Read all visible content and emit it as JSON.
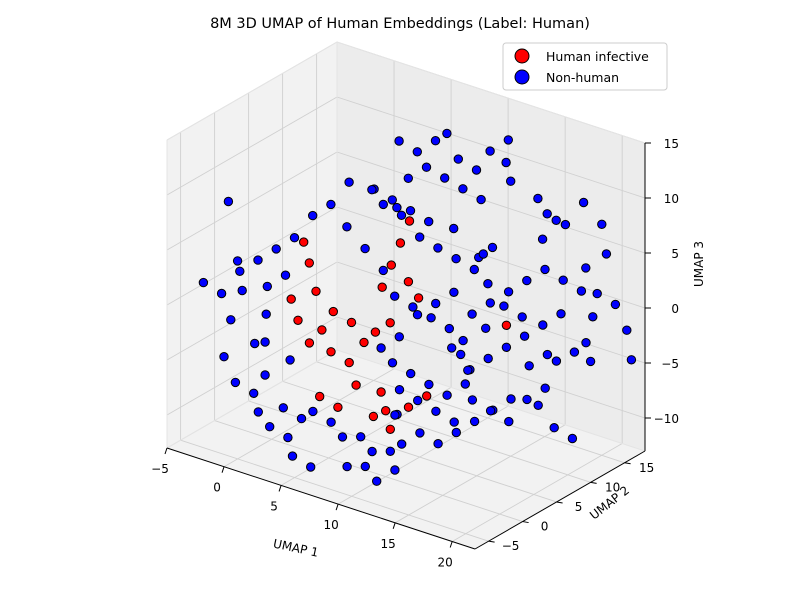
{
  "chart_data": {
    "type": "scatter",
    "title": "8M 3D UMAP of Human Embeddings (Label: Human)",
    "xlabel": "UMAP 1",
    "ylabel": "UMAP 2",
    "zlabel": "UMAP 3",
    "xlim": [
      -5,
      22
    ],
    "ylim": [
      -7,
      18
    ],
    "zlim": [
      -13,
      15
    ],
    "x_ticks": [
      -5,
      0,
      5,
      10,
      15,
      20
    ],
    "y_ticks": [
      -5,
      0,
      5,
      10,
      15
    ],
    "z_ticks": [
      -10,
      -5,
      0,
      5,
      10,
      15
    ],
    "grid": true,
    "legend_position": "top-right",
    "series": [
      {
        "name": "Human infective",
        "color": "#ff0000",
        "points": [
          [
            4,
            -2,
            7
          ],
          [
            4.2,
            -1.5,
            5
          ],
          [
            3.5,
            -3,
            2
          ],
          [
            3.8,
            -2.5,
            0
          ],
          [
            4.5,
            -2,
            -2
          ],
          [
            5,
            -1,
            -1
          ],
          [
            6,
            -1,
            1
          ],
          [
            7,
            0,
            0
          ],
          [
            5.5,
            -0.5,
            -3
          ],
          [
            6.5,
            0.5,
            -4
          ],
          [
            7.5,
            1,
            -2
          ],
          [
            8,
            -1,
            -5
          ],
          [
            8.5,
            2,
            3
          ],
          [
            9,
            2.5,
            5
          ],
          [
            9.5,
            3,
            7
          ],
          [
            10,
            3.5,
            9
          ],
          [
            10.5,
            4,
            2
          ],
          [
            9,
            1,
            -6
          ],
          [
            10,
            0,
            -7
          ],
          [
            11,
            -1,
            -8
          ],
          [
            12,
            0,
            -6
          ],
          [
            13,
            1,
            -5
          ],
          [
            6,
            -3,
            -6
          ],
          [
            7,
            -2,
            -7
          ],
          [
            8.2,
            1.5,
            -1
          ],
          [
            9.2,
            2,
            0
          ],
          [
            17,
            6,
            1
          ],
          [
            10.5,
            2.5,
            4
          ],
          [
            5.2,
            -2.2,
            3
          ],
          [
            8.8,
            0.2,
            -8
          ]
        ]
      },
      {
        "name": "Non-human",
        "color": "#0000ff",
        "points": [
          [
            2,
            -4,
            3
          ],
          [
            3,
            -3,
            4
          ],
          [
            2.5,
            -5,
            1
          ],
          [
            3,
            -6,
            -1
          ],
          [
            1.5,
            -5,
            -2
          ],
          [
            0,
            -6,
            0
          ],
          [
            4,
            -4,
            -3
          ],
          [
            3,
            -6,
            -4
          ],
          [
            2,
            -6,
            -6
          ],
          [
            4,
            -5,
            -7
          ],
          [
            5,
            -4,
            -8
          ],
          [
            6,
            -4,
            -7
          ],
          [
            7,
            -3,
            -8
          ],
          [
            8,
            -3,
            -9
          ],
          [
            9,
            -2,
            -9
          ],
          [
            10,
            -2,
            -10
          ],
          [
            11,
            -1,
            -10
          ],
          [
            12,
            -1,
            -9
          ],
          [
            13,
            0,
            -8
          ],
          [
            14,
            1,
            -9
          ],
          [
            15,
            2,
            -8
          ],
          [
            16,
            3,
            -7
          ],
          [
            17,
            4,
            -6
          ],
          [
            18,
            5,
            -5
          ],
          [
            15,
            4,
            -3
          ],
          [
            16,
            5,
            -2
          ],
          [
            17,
            6,
            -1
          ],
          [
            18,
            7,
            0
          ],
          [
            19,
            8,
            1
          ],
          [
            20,
            9,
            2
          ],
          [
            14,
            6,
            1
          ],
          [
            15,
            7,
            2
          ],
          [
            16,
            8,
            3
          ],
          [
            17,
            9,
            4
          ],
          [
            18,
            10,
            5
          ],
          [
            19,
            11,
            4
          ],
          [
            20,
            12,
            3
          ],
          [
            21,
            12,
            1
          ],
          [
            13,
            8,
            4
          ],
          [
            14,
            9,
            6
          ],
          [
            12,
            7,
            5
          ],
          [
            11,
            6,
            6
          ],
          [
            10,
            5,
            7
          ],
          [
            9,
            4,
            9
          ],
          [
            8,
            3,
            10
          ],
          [
            9,
            5,
            12
          ],
          [
            10,
            6,
            13
          ],
          [
            11,
            7,
            12
          ],
          [
            12,
            8,
            11
          ],
          [
            13,
            9,
            10
          ],
          [
            12,
            10,
            12
          ],
          [
            11,
            9,
            13
          ],
          [
            7,
            3,
            11
          ],
          [
            8,
            5,
            9
          ],
          [
            6,
            1,
            8
          ],
          [
            7,
            2,
            6
          ],
          [
            8,
            3,
            4
          ],
          [
            9,
            3,
            2
          ],
          [
            10,
            4,
            1
          ],
          [
            11,
            5,
            0
          ],
          [
            12,
            6,
            -1
          ],
          [
            13,
            6,
            -3
          ],
          [
            14,
            5,
            -5
          ],
          [
            13,
            4,
            -6
          ],
          [
            12,
            3,
            -5
          ],
          [
            11,
            2,
            -4
          ],
          [
            10,
            1,
            -3
          ],
          [
            9,
            1,
            -2
          ],
          [
            10,
            2,
            -1
          ],
          [
            11,
            3,
            1
          ],
          [
            12,
            4,
            2
          ],
          [
            13,
            5,
            3
          ],
          [
            14,
            3,
            -1
          ],
          [
            15,
            3,
            0
          ],
          [
            16,
            2,
            -2
          ],
          [
            17,
            1,
            -4
          ],
          [
            18,
            2,
            -5
          ],
          [
            19,
            3,
            -6
          ],
          [
            20,
            4,
            -4
          ],
          [
            21,
            5,
            -3
          ],
          [
            19,
            6,
            -2
          ],
          [
            20,
            7,
            -1
          ],
          [
            16,
            0,
            -6
          ],
          [
            15,
            -1,
            -5
          ],
          [
            14,
            -2,
            -4
          ],
          [
            13,
            -3,
            -3
          ],
          [
            12,
            -2,
            -6
          ],
          [
            11,
            0,
            -7
          ],
          [
            -3,
            -5,
            2
          ],
          [
            -2,
            -3,
            9
          ],
          [
            0,
            -5,
            5
          ],
          [
            1,
            -6,
            3
          ],
          [
            17,
            12,
            9
          ],
          [
            18,
            13,
            8
          ],
          [
            19,
            14,
            10
          ],
          [
            20,
            15,
            8
          ],
          [
            16,
            13,
            6
          ],
          [
            21,
            14,
            6
          ],
          [
            15,
            10,
            12
          ],
          [
            14,
            11,
            13
          ],
          [
            5,
            -6,
            -9
          ],
          [
            6,
            -7,
            -10
          ],
          [
            7,
            -6,
            -11
          ],
          [
            20,
            8,
            -8
          ],
          [
            21,
            9,
            -9
          ],
          [
            18,
            9,
            -7
          ],
          [
            22,
            10,
            -2
          ],
          [
            21,
            11,
            -1
          ],
          [
            22,
            16,
            -4
          ],
          [
            17,
            16,
            -5
          ],
          [
            19,
            10,
            -3
          ],
          [
            16,
            10,
            0
          ],
          [
            15,
            9,
            1
          ],
          [
            14,
            8,
            -1
          ],
          [
            13,
            10,
            2
          ],
          [
            12,
            11,
            4
          ],
          [
            11,
            12,
            3
          ],
          [
            10,
            10,
            6
          ],
          [
            9,
            8,
            7
          ],
          [
            8,
            7,
            8
          ],
          [
            7,
            6,
            9
          ],
          [
            6,
            5,
            10
          ],
          [
            5,
            3,
            11
          ],
          [
            4,
            2,
            9
          ],
          [
            3,
            1,
            8
          ],
          [
            2,
            0,
            6
          ],
          [
            1,
            -1,
            5
          ],
          [
            0,
            -2,
            4
          ],
          [
            -1,
            -3,
            3
          ],
          [
            -2,
            -4,
            1
          ],
          [
            0,
            -7,
            -3
          ],
          [
            1,
            -7,
            -5
          ],
          [
            3,
            -7,
            -7
          ],
          [
            4,
            -7,
            -8
          ],
          [
            9,
            -4,
            -11
          ],
          [
            10,
            -3,
            -11
          ],
          [
            11,
            -3,
            -12
          ],
          [
            12,
            -2,
            -11
          ],
          [
            8,
            8,
            13
          ],
          [
            9,
            9,
            14
          ],
          [
            10,
            9,
            15
          ],
          [
            7,
            7,
            14
          ],
          [
            12,
            12,
            13
          ],
          [
            13,
            13,
            14
          ],
          [
            16,
            15,
            7
          ],
          [
            15,
            14,
            9
          ],
          [
            18,
            16,
            3
          ],
          [
            19,
            16,
            1
          ],
          [
            20,
            17,
            0
          ],
          [
            21,
            17,
            -2
          ]
        ]
      }
    ]
  }
}
